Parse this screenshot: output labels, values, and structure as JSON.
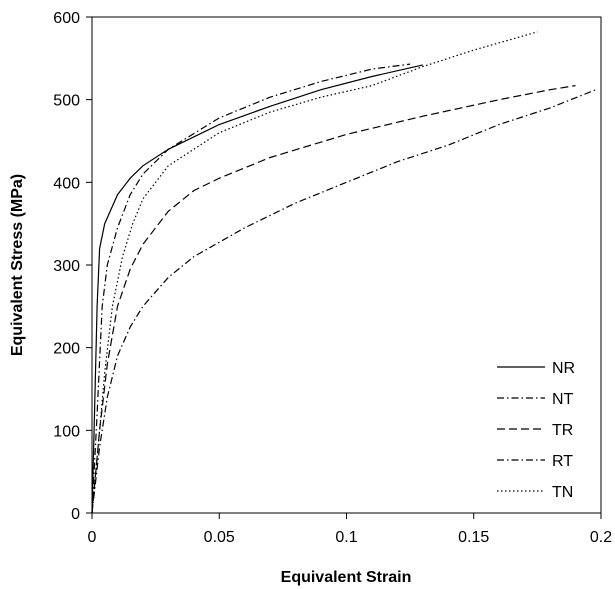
{
  "chart_data": {
    "type": "line",
    "title": "",
    "xlabel": "Equivalent Strain",
    "ylabel": "Equivalent Stress (MPa)",
    "xlim": [
      0,
      0.2
    ],
    "ylim": [
      0,
      600
    ],
    "x_ticks": [
      0,
      0.05,
      0.1,
      0.15,
      0.2
    ],
    "x_tick_labels": [
      "0",
      "0.05",
      "0.1",
      "0.15",
      "0.2"
    ],
    "y_ticks": [
      0,
      100,
      200,
      300,
      400,
      500,
      600
    ],
    "y_tick_labels": [
      "0",
      "100",
      "200",
      "300",
      "400",
      "500",
      "600"
    ],
    "grid": false,
    "legend_position": "bottom-right",
    "series": [
      {
        "name": "NR",
        "style": "solid",
        "points": [
          [
            0,
            0
          ],
          [
            0.001,
            120
          ],
          [
            0.002,
            250
          ],
          [
            0.003,
            320
          ],
          [
            0.005,
            350
          ],
          [
            0.01,
            385
          ],
          [
            0.015,
            405
          ],
          [
            0.02,
            420
          ],
          [
            0.03,
            440
          ],
          [
            0.05,
            470
          ],
          [
            0.07,
            492
          ],
          [
            0.09,
            512
          ],
          [
            0.11,
            528
          ],
          [
            0.13,
            542
          ]
        ]
      },
      {
        "name": "NT",
        "style": "dash-dot",
        "points": [
          [
            0,
            0
          ],
          [
            0.002,
            120
          ],
          [
            0.004,
            250
          ],
          [
            0.006,
            300
          ],
          [
            0.01,
            345
          ],
          [
            0.015,
            385
          ],
          [
            0.02,
            410
          ],
          [
            0.03,
            440
          ],
          [
            0.05,
            478
          ],
          [
            0.07,
            503
          ],
          [
            0.09,
            522
          ],
          [
            0.11,
            537
          ],
          [
            0.125,
            543
          ]
        ]
      },
      {
        "name": "TR",
        "style": "dashed",
        "points": [
          [
            0,
            0
          ],
          [
            0.003,
            100
          ],
          [
            0.006,
            180
          ],
          [
            0.01,
            250
          ],
          [
            0.015,
            295
          ],
          [
            0.02,
            325
          ],
          [
            0.03,
            365
          ],
          [
            0.04,
            390
          ],
          [
            0.05,
            405
          ],
          [
            0.07,
            430
          ],
          [
            0.1,
            458
          ],
          [
            0.13,
            480
          ],
          [
            0.16,
            500
          ],
          [
            0.18,
            512
          ],
          [
            0.19,
            517
          ]
        ]
      },
      {
        "name": "RT",
        "style": "dash-dot",
        "points": [
          [
            0,
            0
          ],
          [
            0.003,
            80
          ],
          [
            0.006,
            140
          ],
          [
            0.01,
            190
          ],
          [
            0.015,
            225
          ],
          [
            0.02,
            250
          ],
          [
            0.03,
            285
          ],
          [
            0.04,
            310
          ],
          [
            0.06,
            345
          ],
          [
            0.08,
            375
          ],
          [
            0.1,
            400
          ],
          [
            0.12,
            425
          ],
          [
            0.14,
            445
          ],
          [
            0.16,
            470
          ],
          [
            0.18,
            490
          ],
          [
            0.198,
            512
          ]
        ]
      },
      {
        "name": "TN",
        "style": "dotted",
        "points": [
          [
            0,
            0
          ],
          [
            0.003,
            100
          ],
          [
            0.005,
            170
          ],
          [
            0.008,
            250
          ],
          [
            0.012,
            310
          ],
          [
            0.016,
            350
          ],
          [
            0.02,
            380
          ],
          [
            0.03,
            420
          ],
          [
            0.05,
            460
          ],
          [
            0.07,
            485
          ],
          [
            0.09,
            503
          ],
          [
            0.11,
            517
          ],
          [
            0.13,
            540
          ],
          [
            0.15,
            560
          ],
          [
            0.175,
            582
          ]
        ]
      }
    ]
  },
  "colors": {
    "line": "#000000",
    "background": "#ffffff"
  }
}
